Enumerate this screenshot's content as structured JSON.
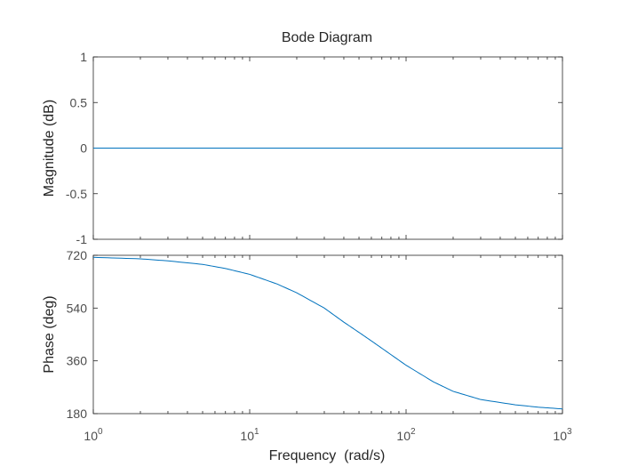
{
  "chart_data": {
    "type": "line",
    "title": "Bode Diagram",
    "xlabel": "Frequency  (rad/s)",
    "x_scale": "log",
    "xlim": [
      1,
      1000
    ],
    "x_ticks": [
      {
        "base": "10",
        "exp": "0"
      },
      {
        "base": "10",
        "exp": "1"
      },
      {
        "base": "10",
        "exp": "2"
      },
      {
        "base": "10",
        "exp": "3"
      }
    ],
    "line_color": "#0072bd",
    "panels": [
      {
        "name": "magnitude",
        "ylabel": "Magnitude (dB)",
        "ylim": [
          -1,
          1
        ],
        "yticks": [
          -1,
          -0.5,
          0,
          0.5,
          1
        ],
        "ytick_labels": [
          "-1",
          "-0.5",
          "0",
          "0.5",
          "1"
        ],
        "series": [
          {
            "name": "magnitude",
            "x": [
              1,
              1000
            ],
            "y": [
              0,
              0
            ]
          }
        ]
      },
      {
        "name": "phase",
        "ylabel": "Phase (deg)",
        "ylim": [
          180,
          720
        ],
        "yticks": [
          180,
          360,
          540,
          720
        ],
        "ytick_labels": [
          "180",
          "360",
          "540",
          "720"
        ],
        "series": [
          {
            "name": "phase",
            "x": [
              1,
              2,
              3,
              5,
              7,
              10,
              15,
              20,
              30,
              40,
              50,
              60,
              70,
              100,
              150,
              200,
              300,
              500,
              700,
              1000
            ],
            "y": [
              713,
              708,
              701,
              689,
              675,
              655,
              622,
              592,
              540,
              492,
              457,
              428,
              403,
              345,
              288,
              256,
              228,
              210,
              202,
              196
            ]
          }
        ]
      }
    ]
  }
}
